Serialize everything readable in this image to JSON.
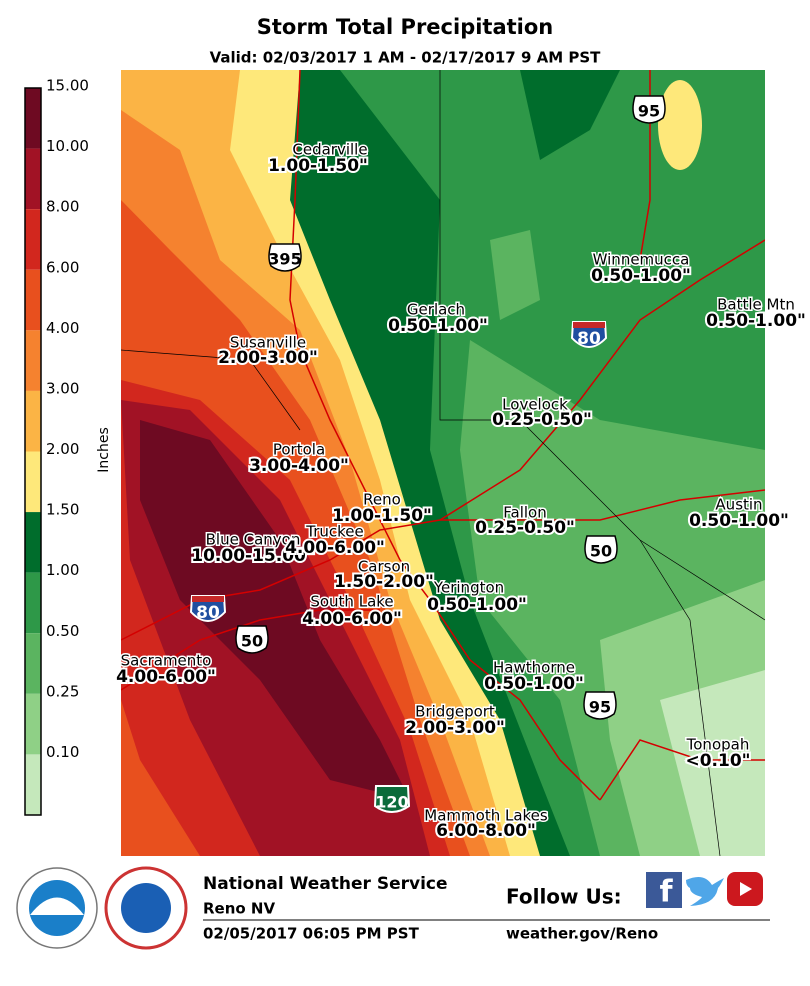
{
  "header": {
    "title": "Storm Total Precipitation",
    "subtitle": "Valid: 02/03/2017 1 AM - 02/17/2017 9 AM PST"
  },
  "legend": {
    "label": "Inches",
    "levels": [
      "15.00",
      "10.00",
      "8.00",
      "6.00",
      "4.00",
      "3.00",
      "2.00",
      "1.50",
      "1.00",
      "0.50",
      "0.25",
      "0.10"
    ],
    "colors": [
      "#6e0a22",
      "#a11225",
      "#d2271e",
      "#e8501e",
      "#f5822f",
      "#fbb445",
      "#fee87a",
      "#006d2c",
      "#2e9848",
      "#5bb460",
      "#8fd086",
      "#c5e8bb"
    ]
  },
  "map": {
    "labels": [
      {
        "name": "Cedarville",
        "range": "1.00-1.50\""
      },
      {
        "name": "Winnemucca",
        "range": "0.50-1.00\""
      },
      {
        "name": "Gerlach",
        "range": "0.50-1.00\""
      },
      {
        "name": "Battle Mtn",
        "range": "0.50-1.00\""
      },
      {
        "name": "Susanville",
        "range": "2.00-3.00\""
      },
      {
        "name": "Lovelock",
        "range": "0.25-0.50\""
      },
      {
        "name": "Portola",
        "range": "3.00-4.00\""
      },
      {
        "name": "Reno",
        "range": "1.00-1.50\""
      },
      {
        "name": "Fallon",
        "range": "0.25-0.50\""
      },
      {
        "name": "Austin",
        "range": "0.50-1.00\""
      },
      {
        "name": "Blue Canyon",
        "range": "10.00-15.00\""
      },
      {
        "name": "Truckee",
        "range": "4.00-6.00\""
      },
      {
        "name": "Carson",
        "range": "1.50-2.00\""
      },
      {
        "name": "Yerington",
        "range": "0.50-1.00\""
      },
      {
        "name": "South Lake",
        "range": "4.00-6.00\""
      },
      {
        "name": "Sacramento",
        "range": "4.00-6.00\""
      },
      {
        "name": "Hawthorne",
        "range": "0.50-1.00\""
      },
      {
        "name": "Bridgeport",
        "range": "2.00-3.00\""
      },
      {
        "name": "Tonopah",
        "range": "<0.10\""
      },
      {
        "name": "Mammoth Lakes",
        "range": "6.00-8.00\""
      }
    ],
    "shields": [
      "95",
      "395",
      "80",
      "80",
      "50",
      "50",
      "95",
      "120"
    ]
  },
  "footer": {
    "agency": "National Weather Service",
    "office": "Reno NV",
    "issued": "02/05/2017 06:05 PM PST",
    "follow": "Follow Us:",
    "website": "weather.gov/Reno"
  }
}
